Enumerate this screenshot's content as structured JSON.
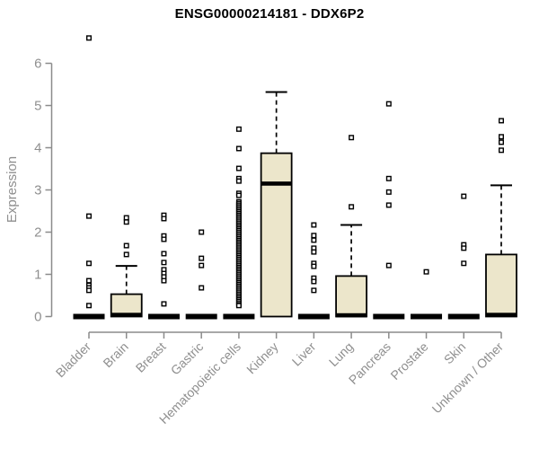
{
  "chart_data": {
    "type": "boxplot",
    "title": "ENSG00000214181 - DDX6P2",
    "ylabel": "Expression",
    "xlabel": "",
    "y_ticks": [
      0,
      1,
      2,
      3,
      4,
      5,
      6
    ],
    "ylim": [
      0,
      6.8
    ],
    "grid": "off",
    "legend": "none",
    "colors": {
      "box_fill": "#ece6cb",
      "box_stroke": "#000000",
      "median": "#000000",
      "outlier_stroke": "#000000",
      "outlier_fill": "#ffffff",
      "axis": "#8b8b8b",
      "tick_label": "#8f8f8f",
      "title": "#000000",
      "background": "#ffffff"
    },
    "categories": [
      "Bladder",
      "Brain",
      "Breast",
      "Gastric",
      "Hematopoietic cells",
      "Kidney",
      "Liver",
      "Lung",
      "Pancreas",
      "Prostate",
      "Skin",
      "Unknown / Other"
    ],
    "series": [
      {
        "label": "Bladder",
        "collapsed": true,
        "q1": 0,
        "median": 0,
        "q3": 0,
        "whisker_low": 0,
        "whisker_high": 0,
        "outliers": [
          6.6,
          2.38,
          1.26,
          0.85,
          0.74,
          0.68,
          0.62,
          0.26
        ]
      },
      {
        "label": "Brain",
        "collapsed": false,
        "q1": 0,
        "median": 0.04,
        "q3": 0.53,
        "whisker_low": 0,
        "whisker_high": 1.2,
        "outliers": [
          2.34,
          2.24,
          1.68,
          1.47
        ]
      },
      {
        "label": "Breast",
        "collapsed": true,
        "q1": 0,
        "median": 0,
        "q3": 0,
        "whisker_low": 0,
        "whisker_high": 0,
        "outliers": [
          2.4,
          2.32,
          1.91,
          1.83,
          1.49,
          1.28,
          1.11,
          1.02,
          0.94,
          0.85,
          0.3
        ]
      },
      {
        "label": "Gastric",
        "collapsed": true,
        "q1": 0,
        "median": 0,
        "q3": 0,
        "whisker_low": 0,
        "whisker_high": 0,
        "outliers": [
          2.0,
          1.38,
          1.21,
          0.68
        ]
      },
      {
        "label": "Hematopoietic cells",
        "collapsed": true,
        "q1": 0,
        "median": 0,
        "q3": 0,
        "whisker_low": 0,
        "whisker_high": 0,
        "outliers": [
          4.44,
          3.98,
          3.51,
          3.27,
          3.21,
          2.92,
          2.87,
          2.72,
          2.68,
          2.64,
          2.6,
          2.56,
          2.52,
          2.48,
          2.44,
          2.4,
          2.36,
          2.32,
          2.28,
          2.24,
          2.2,
          2.16,
          2.12,
          2.08,
          2.04,
          2.0,
          1.96,
          1.92,
          1.88,
          1.84,
          1.8,
          1.76,
          1.72,
          1.68,
          1.64,
          1.6,
          1.56,
          1.52,
          1.48,
          1.44,
          1.4,
          1.36,
          1.32,
          1.28,
          1.24,
          1.2,
          1.16,
          1.12,
          1.08,
          1.04,
          1.0,
          0.96,
          0.92,
          0.88,
          0.84,
          0.8,
          0.76,
          0.72,
          0.68,
          0.64,
          0.6,
          0.56,
          0.52,
          0.48,
          0.44,
          0.4,
          0.36,
          0.32,
          0.28,
          0.26
        ]
      },
      {
        "label": "Kidney",
        "collapsed": false,
        "q1": 0,
        "median": 3.15,
        "q3": 3.87,
        "whisker_low": 0,
        "whisker_high": 5.32,
        "outliers": []
      },
      {
        "label": "Liver",
        "collapsed": true,
        "q1": 0,
        "median": 0,
        "q3": 0,
        "whisker_low": 0,
        "whisker_high": 0,
        "outliers": [
          2.17,
          1.92,
          1.81,
          1.62,
          1.53,
          1.26,
          1.19,
          0.91,
          0.83,
          0.62
        ]
      },
      {
        "label": "Lung",
        "collapsed": false,
        "q1": 0,
        "median": 0.03,
        "q3": 0.96,
        "whisker_low": 0,
        "whisker_high": 2.17,
        "outliers": [
          4.24,
          2.6
        ]
      },
      {
        "label": "Pancreas",
        "collapsed": true,
        "q1": 0,
        "median": 0,
        "q3": 0,
        "whisker_low": 0,
        "whisker_high": 0,
        "outliers": [
          5.04,
          3.27,
          2.95,
          2.64,
          1.21
        ]
      },
      {
        "label": "Prostate",
        "collapsed": true,
        "q1": 0,
        "median": 0,
        "q3": 0,
        "whisker_low": 0,
        "whisker_high": 0,
        "outliers": [
          1.06
        ]
      },
      {
        "label": "Skin",
        "collapsed": true,
        "q1": 0,
        "median": 0,
        "q3": 0,
        "whisker_low": 0,
        "whisker_high": 0,
        "outliers": [
          2.85,
          1.7,
          1.62,
          1.26
        ]
      },
      {
        "label": "Unknown / Other",
        "collapsed": false,
        "q1": 0,
        "median": 0.04,
        "q3": 1.47,
        "whisker_low": 0,
        "whisker_high": 3.11,
        "outliers": [
          4.64,
          4.26,
          4.13,
          3.94
        ]
      }
    ]
  }
}
